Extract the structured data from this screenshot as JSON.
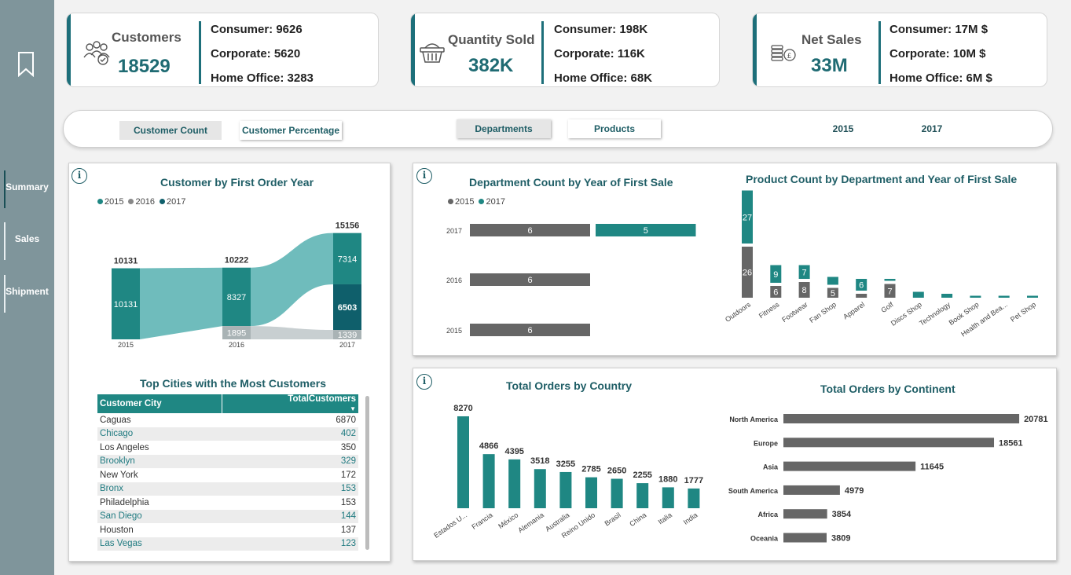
{
  "nav": {
    "items": [
      {
        "label": "Summary",
        "active": true
      },
      {
        "label": "Sales",
        "active": false
      },
      {
        "label": "Shipment",
        "active": false
      }
    ]
  },
  "kpis": [
    {
      "title": "Customers",
      "value": "18529",
      "icon": "customers-icon",
      "lines": [
        "Consumer: 9626",
        "Corporate: 5620",
        "Home Office: 3283"
      ]
    },
    {
      "title": "Quantity Sold",
      "value": "382K",
      "icon": "basket-icon",
      "lines": [
        "Consumer: 198K",
        "Corporate: 116K",
        "Home Office: 68K"
      ]
    },
    {
      "title": "Net Sales",
      "value": "33M",
      "icon": "coins-icon",
      "lines": [
        "Consumer: 17M $",
        "Corporate: 10M $",
        "Home Office: 6M $"
      ]
    }
  ],
  "filters": {
    "customer_count": "Customer Count",
    "customer_percentage": "Customer Percentage",
    "departments": "Departments",
    "products": "Products",
    "year_2015": "2015",
    "year_2017": "2017"
  },
  "colors": {
    "teal": "#1f8783",
    "dark_teal": "#0f5f6b",
    "light_teal": "#6fbcbc",
    "grey": "#666666",
    "light_grey": "#a9b3b5"
  },
  "customer_flow": {
    "title": "Customer by First Order Year",
    "legend": [
      "2015",
      "2016",
      "2017"
    ],
    "columns": [
      {
        "year": "2015",
        "total": 10131,
        "segments": [
          {
            "from": "2015",
            "value": 10131
          }
        ]
      },
      {
        "year": "2016",
        "total": 10222,
        "segments": [
          {
            "from": "2015",
            "value": 8327
          },
          {
            "from": "2016",
            "value": 1895
          }
        ]
      },
      {
        "year": "2017",
        "total": 15156,
        "segments": [
          {
            "from": "2015",
            "value": 7314
          },
          {
            "from": "2017",
            "value": 6503
          },
          {
            "from": "2016",
            "value": 1339
          }
        ]
      }
    ]
  },
  "cities": {
    "title": "Top Cities with the Most Customers",
    "headers": [
      "Customer City",
      "TotalCustomers"
    ],
    "rows": [
      [
        "Caguas",
        "6870"
      ],
      [
        "Chicago",
        "402"
      ],
      [
        "Los Angeles",
        "350"
      ],
      [
        "Brooklyn",
        "329"
      ],
      [
        "New York",
        "172"
      ],
      [
        "Bronx",
        "153"
      ],
      [
        "Philadelphia",
        "153"
      ],
      [
        "San Diego",
        "144"
      ],
      [
        "Houston",
        "137"
      ],
      [
        "Las Vegas",
        "123"
      ]
    ]
  },
  "chart_data": [
    {
      "type": "bar",
      "title": "Department Count by Year of First Sale",
      "categories": [
        "2017",
        "2016",
        "2015"
      ],
      "series": [
        {
          "name": "2015",
          "values": [
            6,
            6,
            6
          ]
        },
        {
          "name": "2017",
          "values": [
            5,
            null,
            null
          ]
        }
      ],
      "legend": "top-left"
    },
    {
      "type": "bar",
      "title": "Product Count by Department and Year of First Sale",
      "categories": [
        "Outdoors",
        "Fitness",
        "Footwear",
        "Fan Shop",
        "Apparel",
        "Golf",
        "Discs Shop",
        "Technology",
        "Book Shop",
        "Health and Bea...",
        "Pet Shop"
      ],
      "series": [
        {
          "name": "2015",
          "values": [
            26,
            6,
            8,
            5,
            2,
            7,
            0,
            0,
            0,
            0,
            0
          ]
        },
        {
          "name": "2017",
          "values": [
            27,
            9,
            7,
            4,
            6,
            1,
            3,
            2,
            1,
            1,
            1
          ]
        }
      ],
      "stacked": true
    },
    {
      "type": "bar",
      "title": "Total Orders by Country",
      "categories": [
        "Estados U...",
        "Francia",
        "México",
        "Alemania",
        "Australia",
        "Reino Unido",
        "Brasil",
        "China",
        "Italia",
        "India"
      ],
      "values": [
        8270,
        4866,
        4395,
        3518,
        3255,
        2785,
        2650,
        2255,
        1880,
        1777
      ]
    },
    {
      "type": "bar",
      "title": "Total Orders by Continent",
      "categories": [
        "North America",
        "Europe",
        "Asia",
        "South America",
        "Africa",
        "Oceania"
      ],
      "values": [
        20781,
        18561,
        11645,
        4979,
        3854,
        3809
      ]
    }
  ]
}
